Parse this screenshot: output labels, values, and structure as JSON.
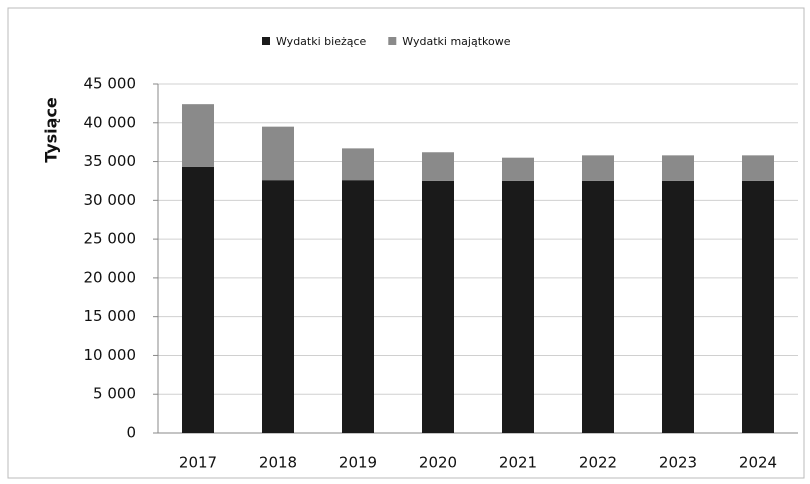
{
  "chart_data": {
    "type": "stacked_bar",
    "y_label": "Tysiące",
    "categories": [
      "2017",
      "2018",
      "2019",
      "2020",
      "2021",
      "2022",
      "2023",
      "2024"
    ],
    "series": [
      {
        "name": "Wydatki bieżące",
        "color": "#1a1a1a",
        "values": [
          34300,
          32600,
          32600,
          32500,
          32500,
          32500,
          32500,
          32500
        ]
      },
      {
        "name": "Wydatki majątkowe",
        "color": "#8a8a8a",
        "values": [
          8100,
          6900,
          4100,
          3700,
          3000,
          3300,
          3300,
          3300
        ]
      }
    ],
    "ylim": [
      0,
      45000
    ],
    "yticks": [
      0,
      {
        "value": 5000,
        "label": "5 000"
      },
      {
        "value": 10000,
        "label": "10 000"
      },
      {
        "value": 15000,
        "label": "15 000"
      },
      {
        "value": 20000,
        "label": "20 000"
      },
      {
        "value": 25000,
        "label": "25 000"
      },
      {
        "value": 30000,
        "label": "30 000"
      },
      {
        "value": 35000,
        "label": "35 000"
      },
      {
        "value": 40000,
        "label": "40 000"
      },
      {
        "value": 45000,
        "label": "45 000"
      }
    ],
    "grid": true,
    "legend": "top"
  }
}
